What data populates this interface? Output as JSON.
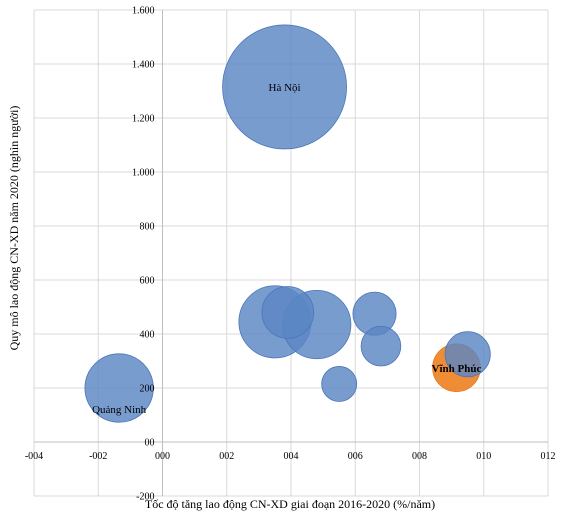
{
  "chart_data": {
    "type": "bubble",
    "title": "",
    "xlabel": "Tốc độ tăng lao động CN-XD giai đoạn 2016-2020 (%/năm)",
    "ylabel": "Quy mô lao động CN-XD năm 2020 (nghìn người)",
    "xlim": [
      -4,
      12
    ],
    "ylim": [
      -200,
      1600
    ],
    "x_ticks": [
      -4,
      -2,
      0,
      2,
      4,
      6,
      8,
      10,
      12
    ],
    "x_tick_labels": [
      "-004",
      "-002",
      "000",
      "002",
      "004",
      "006",
      "008",
      "010",
      "012"
    ],
    "y_ticks": [
      -200,
      0,
      200,
      400,
      600,
      800,
      1000,
      1200,
      1400,
      1600
    ],
    "y_tick_labels": [
      "-200",
      "00",
      "200",
      "400",
      "600",
      "800",
      "1.000",
      "1.200",
      "1.400",
      "1.600"
    ],
    "grid": true,
    "colors": {
      "default": "#5b86c5",
      "highlight": "#f0862b",
      "grid": "#d9d9d9",
      "axis": "#bfbfbf"
    },
    "points": [
      {
        "label": "Hà Nội",
        "x": 3.8,
        "y": 1315,
        "size": 1315,
        "highlight": false,
        "bold": false
      },
      {
        "label": "",
        "x": 3.5,
        "y": 445,
        "size": 445,
        "highlight": false,
        "bold": false
      },
      {
        "label": "",
        "x": 3.9,
        "y": 480,
        "size": 230,
        "highlight": false,
        "bold": false
      },
      {
        "label": "",
        "x": 4.8,
        "y": 435,
        "size": 400,
        "highlight": false,
        "bold": false
      },
      {
        "label": "",
        "x": 6.6,
        "y": 475,
        "size": 160,
        "highlight": false,
        "bold": false
      },
      {
        "label": "",
        "x": 6.8,
        "y": 355,
        "size": 135,
        "highlight": false,
        "bold": false
      },
      {
        "label": "",
        "x": 5.5,
        "y": 215,
        "size": 105,
        "highlight": false,
        "bold": false
      },
      {
        "label": "",
        "x": 9.5,
        "y": 325,
        "size": 175,
        "highlight": false,
        "bold": false
      },
      {
        "label": "Vĩnh Phúc",
        "x": 9.15,
        "y": 275,
        "size": 195,
        "highlight": true,
        "bold": true
      },
      {
        "label": "Quảng Ninh",
        "x": -1.35,
        "y": 200,
        "size": 400,
        "highlight": false,
        "bold": false
      }
    ]
  }
}
